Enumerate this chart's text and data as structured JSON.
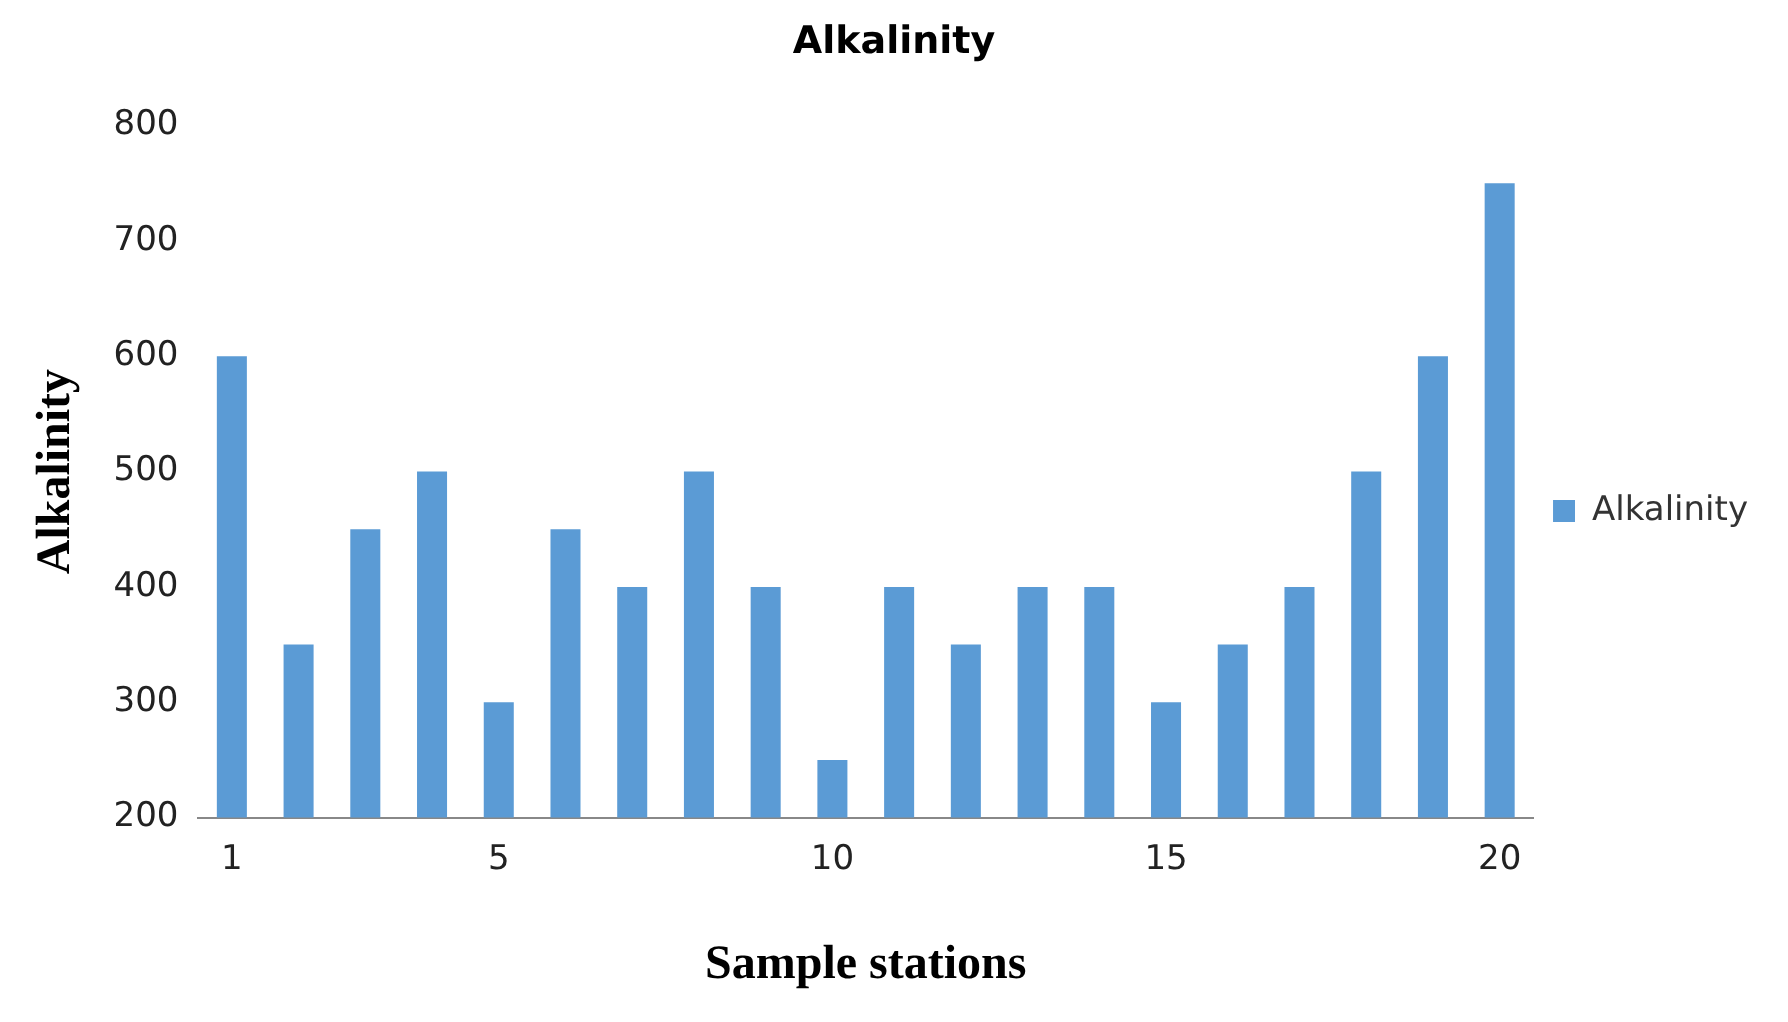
{
  "chart_data": {
    "type": "bar",
    "title": "Alkalinity",
    "xlabel": "Sample stations",
    "ylabel": "Alkalinity",
    "categories": [
      "1",
      null,
      null,
      null,
      "5",
      null,
      null,
      null,
      null,
      "10",
      null,
      null,
      null,
      null,
      "15",
      null,
      null,
      null,
      null,
      "20"
    ],
    "series": [
      {
        "name": "Alkalinity",
        "color": "#5b9bd5",
        "values": [
          600,
          350,
          450,
          500,
          300,
          450,
          400,
          500,
          400,
          250,
          400,
          350,
          400,
          400,
          300,
          350,
          400,
          500,
          600,
          750
        ]
      }
    ],
    "ylim": [
      200,
      800
    ],
    "yticks": [
      200,
      300,
      400,
      500,
      600,
      700,
      800
    ],
    "grid": false,
    "legend": "right"
  }
}
